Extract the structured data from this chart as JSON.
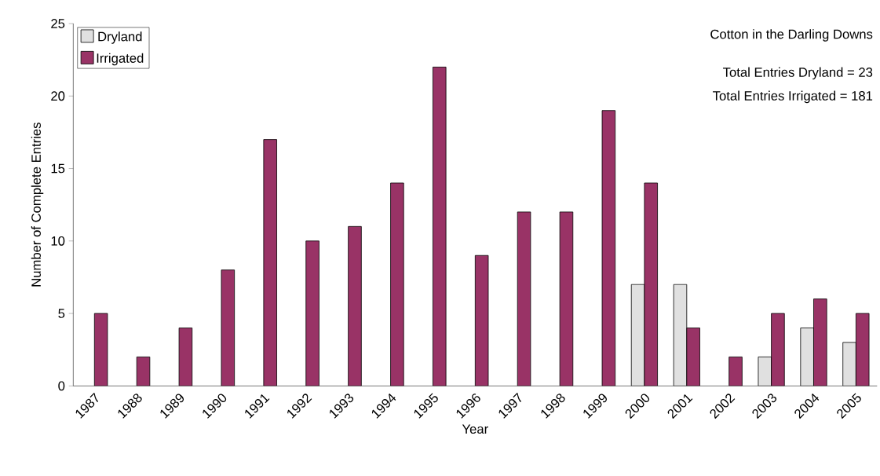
{
  "chart_data": {
    "type": "bar",
    "xlabel": "Year",
    "ylabel": "Number of Complete Entries",
    "categories": [
      "1987",
      "1988",
      "1989",
      "1990",
      "1991",
      "1992",
      "1993",
      "1994",
      "1995",
      "1996",
      "1997",
      "1998",
      "1999",
      "2000",
      "2001",
      "2002",
      "2003",
      "2004",
      "2005"
    ],
    "series": [
      {
        "name": "Dryland",
        "color": "#e0e0e0",
        "values": [
          null,
          null,
          null,
          null,
          null,
          null,
          null,
          null,
          null,
          null,
          null,
          null,
          null,
          7,
          7,
          null,
          2,
          4,
          3
        ]
      },
      {
        "name": "Irrigated",
        "color": "#993366",
        "values": [
          5,
          2,
          4,
          8,
          17,
          10,
          11,
          14,
          22,
          9,
          12,
          12,
          19,
          14,
          4,
          2,
          5,
          6,
          5
        ]
      }
    ],
    "ylim": [
      0,
      25
    ],
    "yticks": [
      0,
      5,
      10,
      15,
      20,
      25
    ],
    "grid": false,
    "legend": "top left",
    "annotations": [
      "Cotton in the Darling Downs",
      "Total Entries Dryland = 23",
      "Total Entries Irrigated = 181"
    ]
  }
}
